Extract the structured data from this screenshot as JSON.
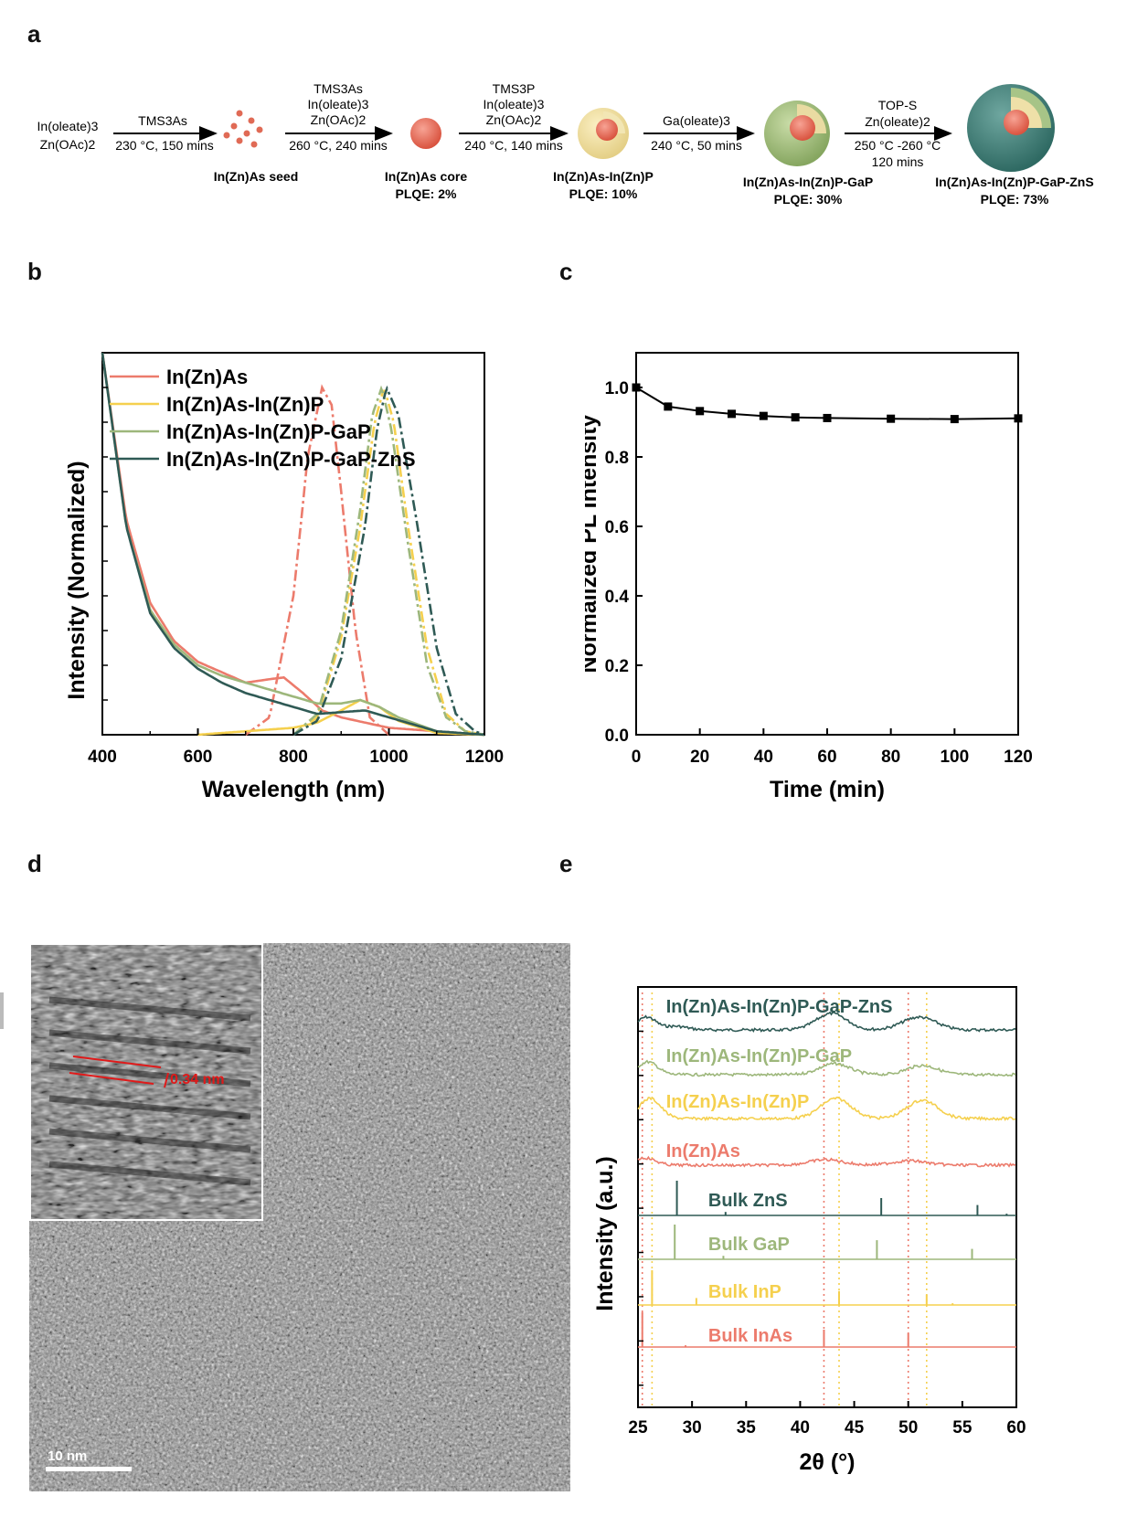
{
  "panels": {
    "a": "a",
    "b": "b",
    "c": "c",
    "d": "d",
    "e": "e"
  },
  "scheme": {
    "start": [
      "In(oleate)3",
      "Zn(OAc)2"
    ],
    "steps": [
      {
        "reagents": [
          "TMS3As"
        ],
        "conditions": [
          "230 °C, 150 mins"
        ]
      },
      {
        "reagents": [
          "TMS3As",
          "In(oleate)3",
          "Zn(OAc)2"
        ],
        "conditions": [
          "260 °C, 240 mins"
        ]
      },
      {
        "reagents": [
          "TMS3P",
          "In(oleate)3",
          "Zn(OAc)2"
        ],
        "conditions": [
          "240 °C, 140 mins"
        ]
      },
      {
        "reagents": [
          "Ga(oleate)3"
        ],
        "conditions": [
          "240 °C, 50 mins"
        ]
      },
      {
        "reagents": [
          "TOP-S",
          "Zn(oleate)2"
        ],
        "conditions": [
          "250 °C -260 °C",
          "120 mins"
        ]
      }
    ],
    "products": [
      {
        "name": "In(Zn)As seed",
        "plqe": ""
      },
      {
        "name": "In(Zn)As core",
        "plqe": "PLQE: 2%"
      },
      {
        "name": "In(Zn)As-In(Zn)P",
        "plqe": "PLQE: 10%"
      },
      {
        "name": "In(Zn)As-In(Zn)P-GaP",
        "plqe": "PLQE: 30%"
      },
      {
        "name": "In(Zn)As-In(Zn)P-GaP-ZnS",
        "plqe": "PLQE: 73%"
      }
    ]
  },
  "colors": {
    "inzn_as": "#ec7b6c",
    "inzn_p": "#f5d04e",
    "gap": "#9db77b",
    "zns": "#2f5a55"
  },
  "chart_data": [
    {
      "id": "b",
      "type": "line",
      "xlabel": "Wavelength (nm)",
      "ylabel": "Intensity (Normalized)",
      "xlim": [
        400,
        1200
      ],
      "ylim": [
        0,
        1.1
      ],
      "xticks": [
        400,
        600,
        800,
        1000,
        1200
      ],
      "legend_position": "top-left",
      "series": [
        {
          "name": "In(Zn)As",
          "color": "#ec7b6c",
          "absorption": {
            "x": [
              400,
              450,
              500,
              550,
              600,
              650,
              700,
              750,
              780,
              820,
              860,
              900,
              950,
              1000,
              1100,
              1200
            ],
            "y": [
              1.1,
              0.62,
              0.38,
              0.27,
              0.21,
              0.18,
              0.15,
              0.16,
              0.165,
              0.12,
              0.07,
              0.05,
              0.035,
              0.02,
              0.01,
              0.0
            ]
          },
          "emission": {
            "x": [
              700,
              750,
              800,
              830,
              860,
              880,
              900,
              930,
              960,
              1000
            ],
            "y": [
              0.0,
              0.05,
              0.4,
              0.8,
              1.0,
              0.95,
              0.7,
              0.3,
              0.05,
              0.0
            ]
          }
        },
        {
          "name": "In(Zn)As-In(Zn)P",
          "color": "#f5d04e",
          "absorption": {
            "x": [
              600,
              700,
              800,
              850,
              900,
              940,
              980,
              1020,
              1100,
              1200
            ],
            "y": [
              0.0,
              0.01,
              0.02,
              0.035,
              0.07,
              0.1,
              0.08,
              0.04,
              0.005,
              0.0
            ]
          },
          "emission": {
            "x": [
              800,
              850,
              900,
              940,
              970,
              990,
              1010,
              1040,
              1080,
              1120,
              1160,
              1200
            ],
            "y": [
              0.0,
              0.05,
              0.28,
              0.6,
              0.9,
              1.0,
              0.9,
              0.6,
              0.25,
              0.06,
              0.01,
              0.0
            ]
          }
        },
        {
          "name": "In(Zn)As-In(Zn)P-GaP",
          "color": "#9db77b",
          "absorption": {
            "x": [
              400,
              450,
              500,
              550,
              600,
              650,
              700,
              750,
              800,
              850,
              900,
              940,
              980,
              1020,
              1100,
              1200
            ],
            "y": [
              1.1,
              0.6,
              0.36,
              0.26,
              0.2,
              0.17,
              0.15,
              0.13,
              0.11,
              0.09,
              0.09,
              0.1,
              0.08,
              0.05,
              0.01,
              0.0
            ]
          },
          "emission": {
            "x": [
              800,
              850,
              900,
              940,
              965,
              985,
              1005,
              1040,
              1080,
              1120,
              1160,
              1200
            ],
            "y": [
              0.0,
              0.06,
              0.3,
              0.65,
              0.92,
              1.0,
              0.88,
              0.55,
              0.2,
              0.05,
              0.01,
              0.0
            ]
          }
        },
        {
          "name": "In(Zn)As-In(Zn)P-GaP-ZnS",
          "color": "#2f5a55",
          "absorption": {
            "x": [
              400,
              450,
              500,
              550,
              600,
              650,
              700,
              750,
              800,
              850,
              900,
              950,
              1000,
              1050,
              1100,
              1200
            ],
            "y": [
              1.1,
              0.6,
              0.35,
              0.25,
              0.19,
              0.15,
              0.12,
              0.1,
              0.08,
              0.06,
              0.065,
              0.07,
              0.05,
              0.03,
              0.01,
              0.0
            ]
          },
          "emission": {
            "x": [
              800,
              850,
              900,
              950,
              975,
              995,
              1020,
              1060,
              1100,
              1140,
              1180,
              1200
            ],
            "y": [
              0.0,
              0.04,
              0.22,
              0.6,
              0.88,
              1.0,
              0.92,
              0.6,
              0.25,
              0.06,
              0.01,
              0.0
            ]
          }
        }
      ]
    },
    {
      "id": "c",
      "type": "line",
      "xlabel": "Time (min)",
      "ylabel": "Normalized PL Intensity",
      "xlim": [
        0,
        120
      ],
      "ylim": [
        0.0,
        1.1
      ],
      "xticks": [
        0,
        20,
        40,
        60,
        80,
        100,
        120
      ],
      "yticks": [
        "0.0",
        "0.2",
        "0.4",
        "0.6",
        "0.8",
        "1.0"
      ],
      "series": [
        {
          "name": "PL",
          "color": "#000000",
          "x": [
            0,
            10,
            20,
            30,
            40,
            50,
            60,
            80,
            100,
            120
          ],
          "y": [
            1.0,
            0.945,
            0.932,
            0.924,
            0.918,
            0.914,
            0.912,
            0.91,
            0.909,
            0.911
          ]
        }
      ]
    },
    {
      "id": "e",
      "type": "line",
      "xlabel": "2θ (°)",
      "ylabel": "Intensity (a.u.)",
      "xlim": [
        25,
        60
      ],
      "xticks": [
        25,
        30,
        35,
        40,
        45,
        50,
        55,
        60
      ],
      "reference_lines": [
        {
          "x": 25.4,
          "color": "#ec7b6c"
        },
        {
          "x": 26.3,
          "color": "#f5d04e"
        },
        {
          "x": 42.2,
          "color": "#ec7b6c"
        },
        {
          "x": 43.6,
          "color": "#f5d04e"
        },
        {
          "x": 50.0,
          "color": "#ec7b6c"
        },
        {
          "x": 51.7,
          "color": "#f5d04e"
        }
      ],
      "series": [
        {
          "name": "In(Zn)As-In(Zn)P-GaP-ZnS",
          "color": "#2f5a55",
          "kind": "broad",
          "peaks": [
            [
              25.8,
              0.35,
              1.2
            ],
            [
              28.5,
              0.1,
              1.5
            ],
            [
              42.9,
              0.45,
              2.0
            ],
            [
              51.0,
              0.35,
              2.2
            ]
          ]
        },
        {
          "name": "In(Zn)As-In(Zn)P-GaP",
          "color": "#9db77b",
          "kind": "broad",
          "peaks": [
            [
              25.9,
              0.35,
              1.3
            ],
            [
              43.2,
              0.3,
              2.0
            ],
            [
              51.3,
              0.25,
              2.0
            ]
          ]
        },
        {
          "name": "In(Zn)As-In(Zn)P",
          "color": "#f5d04e",
          "kind": "broad",
          "peaks": [
            [
              26.1,
              0.55,
              1.4
            ],
            [
              43.3,
              0.55,
              2.0
            ],
            [
              51.3,
              0.5,
              2.0
            ]
          ]
        },
        {
          "name": "In(Zn)As",
          "color": "#ec7b6c",
          "kind": "broad",
          "peaks": [
            [
              25.6,
              0.2,
              1.4
            ],
            [
              42.4,
              0.15,
              2.2
            ],
            [
              50.1,
              0.12,
              2.2
            ]
          ]
        },
        {
          "name": "Bulk ZnS",
          "color": "#2f5a55",
          "kind": "sticks",
          "peaks": [
            [
              28.6,
              1.0
            ],
            [
              33.1,
              0.1
            ],
            [
              47.5,
              0.5
            ],
            [
              56.4,
              0.3
            ],
            [
              59.1,
              0.05
            ]
          ]
        },
        {
          "name": "Bulk GaP",
          "color": "#9db77b",
          "kind": "sticks",
          "peaks": [
            [
              28.4,
              1.0
            ],
            [
              32.9,
              0.1
            ],
            [
              47.1,
              0.55
            ],
            [
              55.9,
              0.3
            ]
          ]
        },
        {
          "name": "Bulk InP",
          "color": "#f5d04e",
          "kind": "sticks",
          "peaks": [
            [
              26.3,
              1.0
            ],
            [
              30.4,
              0.2
            ],
            [
              43.6,
              0.4
            ],
            [
              51.7,
              0.3
            ],
            [
              54.1,
              0.05
            ]
          ]
        },
        {
          "name": "Bulk InAs",
          "color": "#ec7b6c",
          "kind": "sticks",
          "peaks": [
            [
              25.4,
              1.0
            ],
            [
              29.4,
              0.05
            ],
            [
              42.2,
              0.5
            ],
            [
              50.0,
              0.4
            ]
          ]
        }
      ]
    }
  ],
  "tem": {
    "scale_label": "10 nm",
    "lattice_label": "0.34 nm"
  }
}
